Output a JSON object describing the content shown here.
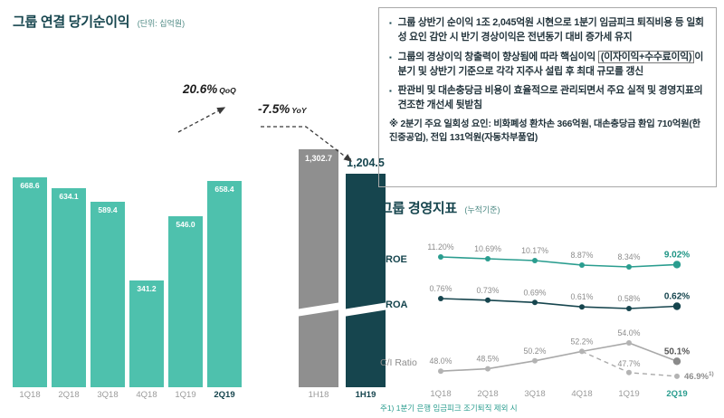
{
  "left_chart": {
    "title": "그룹 연결 당기순이익",
    "unit": "(단위: 십억원)"
  },
  "right_chart": {
    "title": "그룹 경영지표",
    "unit": "(누적기준)"
  },
  "icons": {
    "bullet": "▪"
  },
  "commentary": {
    "bullet1": "그룹 상반기 순이익 1조 2,045억원 시현으로 1분기 임금피크 퇴직비용 등 일회성 요인 감안 시 반기 경상이익은 전년동기 대비 증가세 유지",
    "bullet2_pre": "그룹의 경상이익 창출력이 향상됨에 따라 핵심이익 ",
    "bullet2_boxed": "(이자이익+수수료이익)",
    "bullet2_post": "이 분기 및 상반기 기준으로 각각 지주사 설립 후 최대 규모를 갱신",
    "bullet3": "판관비 및 대손충당금 비용이 효율적으로 관리되면서 주요 실적 및 경영지표의 견조한 개선세 뒷받침",
    "note": "※ 2분기 주요 일회성 요인: 비화폐성 환차손 366억원, 대손충당금 환입 710억원(한진중공업), 전입 131억원(자동차부품업)"
  },
  "chart_data": [
    {
      "type": "bar",
      "title": "그룹 연결 당기순이익",
      "unit": "십억원",
      "categories": [
        "1Q18",
        "2Q18",
        "3Q18",
        "4Q18",
        "1Q19",
        "2Q19"
      ],
      "values": [
        668.6,
        634.1,
        589.4,
        341.2,
        546.0,
        658.4
      ],
      "labels": [
        "668.6",
        "634.1",
        "589.4",
        "341.2",
        "546.0",
        "658.4"
      ],
      "highlight_index": 5,
      "bar_color": "#4ec1ad",
      "ylim": [
        0,
        700
      ],
      "half_year": {
        "categories": [
          "1H18",
          "1H19"
        ],
        "values": [
          1302.7,
          1204.5
        ],
        "labels": [
          "1,302.7",
          "1,204.5"
        ],
        "colors": [
          "#8f8f8f",
          "#16454e"
        ],
        "axis_break": true
      },
      "annotations": [
        {
          "value": "20.6%",
          "suffix": "QoQ"
        },
        {
          "value": "-7.5%",
          "suffix": "YoY"
        }
      ]
    },
    {
      "type": "line",
      "title": "그룹 경영지표 (누적기준)",
      "categories": [
        "1Q18",
        "2Q18",
        "3Q18",
        "4Q18",
        "1Q19",
        "2Q19"
      ],
      "legend_position": "left",
      "grid": false,
      "series": [
        {
          "name": "ROE",
          "color": "#2a9d8f",
          "final_color": "#1e9484",
          "values": [
            11.2,
            10.69,
            10.17,
            8.87,
            8.34,
            9.02
          ],
          "labels": [
            "11.20%",
            "10.69%",
            "10.17%",
            "8.87%",
            "8.34%",
            "9.02%"
          ]
        },
        {
          "name": "ROA",
          "color": "#16454e",
          "final_color": "#16454e",
          "values": [
            0.76,
            0.73,
            0.69,
            0.61,
            0.58,
            0.62
          ],
          "labels": [
            "0.76%",
            "0.73%",
            "0.69%",
            "0.61%",
            "0.58%",
            "0.62%"
          ]
        },
        {
          "name": "C/I Ratio",
          "color": "#a9a9a9",
          "final_color": "#555555",
          "values": [
            48.0,
            48.5,
            50.2,
            52.2,
            54.0,
            50.1
          ],
          "labels": [
            "48.0%",
            "48.5%",
            "50.2%",
            "52.2%",
            "54.0%",
            "50.1%"
          ]
        },
        {
          "name": "C/I Ratio (1분기 은행 임금피크 조기퇴직 제외)",
          "color": "#a9a9a9",
          "style": "dashed",
          "start_index": 3,
          "values": [
            52.2,
            47.7,
            46.9
          ],
          "labels": [
            "",
            "47.7%",
            "46.9%"
          ],
          "footnote_marker": "1)"
        }
      ],
      "footnote": "주1) 1분기 은행 임금피크 조기퇴직 제외 시"
    }
  ]
}
